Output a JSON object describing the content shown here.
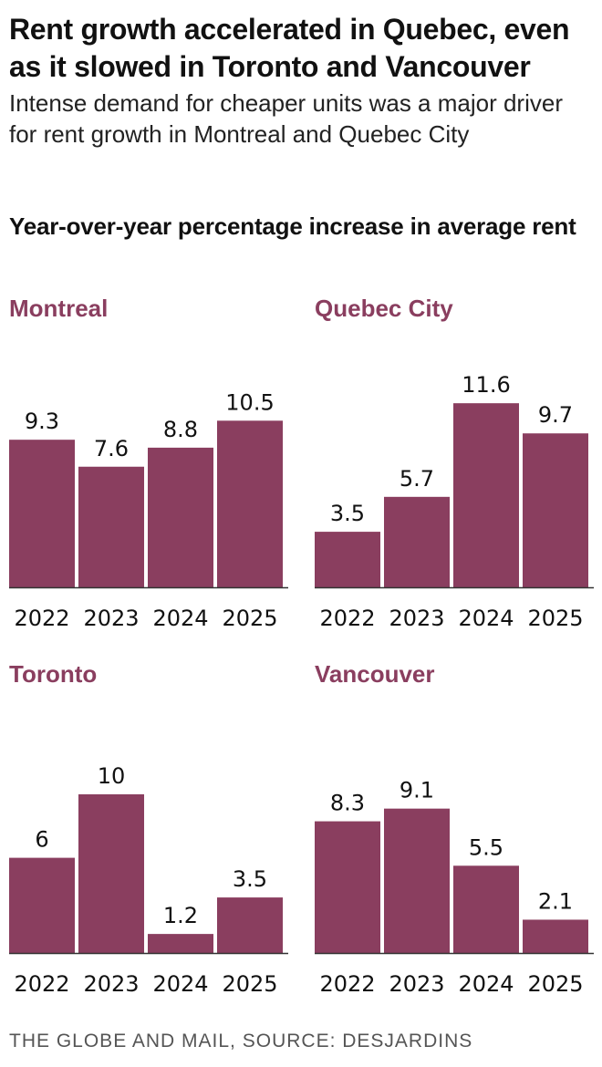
{
  "title": "Rent growth accelerated in Quebec, even as it slowed in Toronto and Vancouver",
  "subtitle": "Intense demand for cheaper units was a major driver for rent growth in Montreal and Quebec City",
  "chart_heading": "Year-over-year percentage increase in average rent",
  "source": "THE GLOBE AND MAIL, SOURCE: DESJARDINS",
  "colors": {
    "bar": "#8a3e5f",
    "axis": "#333333",
    "text": "#111111"
  },
  "chart_data": [
    {
      "type": "bar",
      "title": "Montreal",
      "categories": [
        "2022",
        "2023",
        "2024",
        "2025"
      ],
      "values": [
        9.3,
        7.6,
        8.8,
        10.5
      ],
      "value_labels": [
        "9.3",
        "7.6",
        "8.8",
        "10.5"
      ],
      "ylim": [
        0,
        12
      ]
    },
    {
      "type": "bar",
      "title": "Quebec City",
      "categories": [
        "2022",
        "2023",
        "2024",
        "2025"
      ],
      "values": [
        3.5,
        5.7,
        11.6,
        9.7
      ],
      "value_labels": [
        "3.5",
        "5.7",
        "11.6",
        "9.7"
      ],
      "ylim": [
        0,
        12
      ]
    },
    {
      "type": "bar",
      "title": "Toronto",
      "categories": [
        "2022",
        "2023",
        "2024",
        "2025"
      ],
      "values": [
        6,
        10,
        1.2,
        3.5
      ],
      "value_labels": [
        "6",
        "10",
        "1.2",
        "3.5"
      ],
      "ylim": [
        0,
        12
      ]
    },
    {
      "type": "bar",
      "title": "Vancouver",
      "categories": [
        "2022",
        "2023",
        "2024",
        "2025"
      ],
      "values": [
        8.3,
        9.1,
        5.5,
        2.1
      ],
      "value_labels": [
        "8.3",
        "9.1",
        "5.5",
        "2.1"
      ],
      "ylim": [
        0,
        12
      ]
    }
  ]
}
